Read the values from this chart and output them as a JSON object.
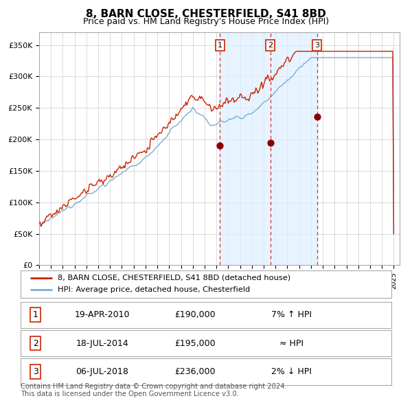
{
  "title": "8, BARN CLOSE, CHESTERFIELD, S41 8BD",
  "subtitle": "Price paid vs. HM Land Registry's House Price Index (HPI)",
  "title_fontsize": 11,
  "subtitle_fontsize": 9,
  "ylabel_ticks": [
    "£0",
    "£50K",
    "£100K",
    "£150K",
    "£200K",
    "£250K",
    "£300K",
    "£350K"
  ],
  "ytick_values": [
    0,
    50000,
    100000,
    150000,
    200000,
    250000,
    300000,
    350000
  ],
  "ylim": [
    0,
    370000
  ],
  "x_start_year": 1995,
  "x_end_year": 2025,
  "hpi_color": "#7dadd4",
  "price_color": "#cc2200",
  "shade_color": "#ddeeff",
  "grid_color": "#cccccc",
  "sale_points": [
    {
      "year": 2010.3,
      "value": 190000,
      "label": "1"
    },
    {
      "year": 2014.55,
      "value": 195000,
      "label": "2"
    },
    {
      "year": 2018.5,
      "value": 236000,
      "label": "3"
    }
  ],
  "vline_color": "#cc3333",
  "marker_color": "#8b0000",
  "legend_line1": "8, BARN CLOSE, CHESTERFIELD, S41 8BD (detached house)",
  "legend_line2": "HPI: Average price, detached house, Chesterfield",
  "table_rows": [
    {
      "num": "1",
      "date": "19-APR-2010",
      "price": "£190,000",
      "rel": "7% ↑ HPI"
    },
    {
      "num": "2",
      "date": "18-JUL-2014",
      "price": "£195,000",
      "rel": "≈ HPI"
    },
    {
      "num": "3",
      "date": "06-JUL-2018",
      "price": "£236,000",
      "rel": "2% ↓ HPI"
    }
  ],
  "footnote": "Contains HM Land Registry data © Crown copyright and database right 2024.\nThis data is licensed under the Open Government Licence v3.0.",
  "background_color": "#ffffff"
}
